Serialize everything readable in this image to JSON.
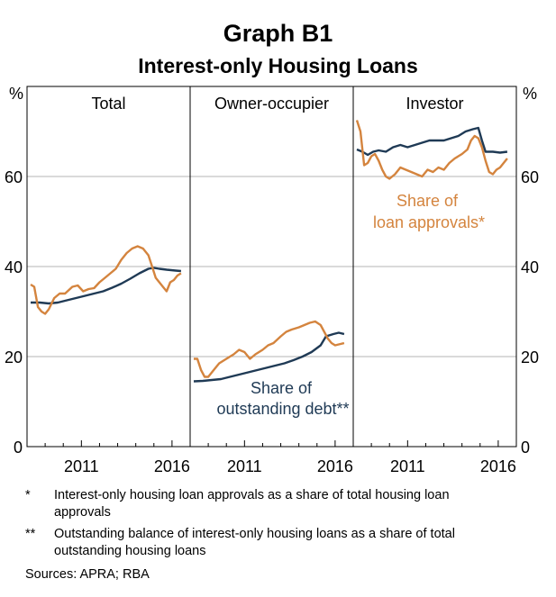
{
  "title": "Graph B1",
  "subtitle": "Interest-only Housing Loans",
  "colors": {
    "debt": "#1f3a55",
    "approvals": "#d4843e",
    "grid": "#b5b5b5",
    "frame": "#000000"
  },
  "notes": [
    {
      "mark": "*",
      "text": "Interest-only housing loan approvals as a share of total housing loan approvals"
    },
    {
      "mark": "**",
      "text": "Outstanding balance of interest-only housing loans as a share of total outstanding housing loans"
    }
  ],
  "sources": "Sources:   APRA; RBA",
  "chart_data": {
    "type": "line",
    "y_unit": "%",
    "ylim": [
      0,
      80
    ],
    "yticks": [
      0,
      20,
      40,
      60
    ],
    "xlim": [
      2008.0,
      2017.0
    ],
    "xticks": [
      2011,
      2016
    ],
    "grid": true,
    "panels": [
      {
        "title": "Total",
        "series": [
          {
            "key": "debt",
            "x": [
              2008.2,
              2008.7,
              2009.2,
              2009.7,
              2010.2,
              2010.7,
              2011.2,
              2011.7,
              2012.2,
              2012.7,
              2013.2,
              2013.7,
              2014.2,
              2014.7,
              2015.0,
              2015.3,
              2015.7,
              2016.2,
              2016.5
            ],
            "y": [
              32.0,
              32.0,
              31.8,
              32.0,
              32.5,
              33.0,
              33.5,
              34.0,
              34.5,
              35.3,
              36.2,
              37.3,
              38.5,
              39.5,
              39.7,
              39.5,
              39.3,
              39.1,
              39.0
            ]
          },
          {
            "key": "approvals",
            "x": [
              2008.2,
              2008.4,
              2008.6,
              2008.8,
              2009.0,
              2009.2,
              2009.5,
              2009.8,
              2010.1,
              2010.5,
              2010.8,
              2011.1,
              2011.4,
              2011.7,
              2012.0,
              2012.3,
              2012.6,
              2012.9,
              2013.2,
              2013.5,
              2013.8,
              2014.1,
              2014.4,
              2014.7,
              2014.9,
              2015.1,
              2015.3,
              2015.5,
              2015.7,
              2015.9,
              2016.1,
              2016.3,
              2016.5
            ],
            "y": [
              36.0,
              35.5,
              31.0,
              30.0,
              29.5,
              30.5,
              33.0,
              34.0,
              34.0,
              35.5,
              35.8,
              34.5,
              35.0,
              35.2,
              36.5,
              37.5,
              38.5,
              39.5,
              41.5,
              43.0,
              44.0,
              44.5,
              44.0,
              42.5,
              40.0,
              37.5,
              36.5,
              35.5,
              34.5,
              36.5,
              37.0,
              38.0,
              38.5
            ]
          }
        ]
      },
      {
        "title": "Owner-occupier",
        "series": [
          {
            "key": "debt",
            "x": [
              2008.2,
              2008.7,
              2009.2,
              2009.7,
              2010.2,
              2010.7,
              2011.2,
              2011.7,
              2012.2,
              2012.7,
              2013.2,
              2013.7,
              2014.2,
              2014.7,
              2015.2,
              2015.5,
              2015.9,
              2016.2,
              2016.5
            ],
            "y": [
              14.5,
              14.6,
              14.8,
              15.0,
              15.5,
              16.0,
              16.5,
              17.0,
              17.5,
              18.0,
              18.5,
              19.2,
              20.0,
              21.0,
              22.5,
              24.5,
              25.0,
              25.3,
              25.0
            ]
          },
          {
            "key": "approvals",
            "x": [
              2008.2,
              2008.4,
              2008.6,
              2008.8,
              2009.0,
              2009.3,
              2009.6,
              2010.0,
              2010.4,
              2010.7,
              2011.0,
              2011.3,
              2011.6,
              2012.0,
              2012.3,
              2012.6,
              2013.0,
              2013.3,
              2013.6,
              2014.0,
              2014.3,
              2014.6,
              2014.9,
              2015.2,
              2015.4,
              2015.6,
              2015.8,
              2016.0,
              2016.3,
              2016.5
            ],
            "y": [
              19.5,
              19.5,
              17.0,
              15.5,
              15.5,
              17.0,
              18.5,
              19.5,
              20.5,
              21.5,
              21.0,
              19.5,
              20.5,
              21.5,
              22.5,
              23.0,
              24.5,
              25.5,
              26.0,
              26.5,
              27.0,
              27.5,
              27.8,
              27.0,
              25.5,
              24.0,
              23.0,
              22.5,
              22.8,
              23.0
            ]
          }
        ]
      },
      {
        "title": "Investor",
        "series": [
          {
            "key": "debt",
            "x": [
              2008.2,
              2008.5,
              2008.8,
              2009.1,
              2009.4,
              2009.8,
              2010.2,
              2010.6,
              2011.0,
              2011.4,
              2011.8,
              2012.2,
              2012.6,
              2013.0,
              2013.4,
              2013.8,
              2014.2,
              2014.6,
              2014.9,
              2015.1,
              2015.3,
              2015.7,
              2016.1,
              2016.5
            ],
            "y": [
              66.0,
              65.5,
              64.8,
              65.5,
              65.8,
              65.5,
              66.5,
              67.0,
              66.5,
              67.0,
              67.5,
              68.0,
              68.0,
              68.0,
              68.5,
              69.0,
              70.0,
              70.5,
              70.8,
              68.0,
              65.5,
              65.5,
              65.3,
              65.5
            ]
          },
          {
            "key": "approvals",
            "x": [
              2008.2,
              2008.4,
              2008.6,
              2008.8,
              2009.0,
              2009.2,
              2009.4,
              2009.6,
              2009.8,
              2010.0,
              2010.3,
              2010.6,
              2010.9,
              2011.2,
              2011.5,
              2011.8,
              2012.1,
              2012.4,
              2012.7,
              2013.0,
              2013.3,
              2013.6,
              2014.0,
              2014.3,
              2014.5,
              2014.7,
              2014.9,
              2015.1,
              2015.3,
              2015.5,
              2015.7,
              2015.9,
              2016.1,
              2016.3,
              2016.5
            ],
            "y": [
              72.5,
              70.0,
              62.5,
              63.0,
              64.5,
              65.0,
              63.5,
              61.5,
              60.0,
              59.5,
              60.5,
              62.0,
              61.5,
              61.0,
              60.5,
              60.0,
              61.5,
              61.0,
              62.0,
              61.5,
              63.0,
              64.0,
              65.0,
              66.0,
              68.0,
              69.0,
              68.5,
              66.5,
              63.5,
              61.0,
              60.5,
              61.5,
              62.0,
              63.0,
              64.0
            ]
          }
        ]
      }
    ],
    "annotations": [
      {
        "panel": 1,
        "text_lines": [
          "Share of",
          "outstanding debt**"
        ],
        "color_key": "debt"
      },
      {
        "panel": 2,
        "text_lines": [
          "Share of",
          "loan approvals*"
        ],
        "color_key": "approvals"
      }
    ]
  }
}
